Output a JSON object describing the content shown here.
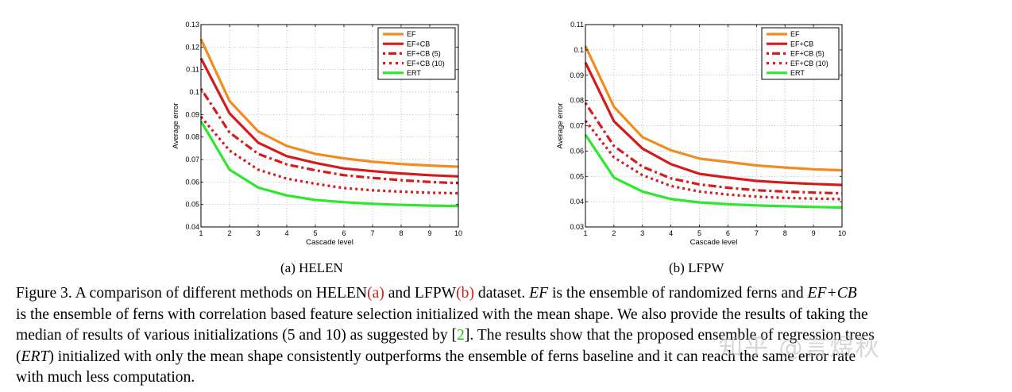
{
  "figure": {
    "subcaptions": [
      "(a)  HELEN",
      "(b)  LFPW"
    ],
    "caption_lines": [
      [
        {
          "t": "Figure 3. A comparison of different methods on HELEN"
        },
        {
          "t": "(a)",
          "c": "red"
        },
        {
          "t": " and LFPW"
        },
        {
          "t": "(b)",
          "c": "red"
        },
        {
          "t": " dataset. "
        },
        {
          "t": "EF",
          "i": true
        },
        {
          "t": " is the ensemble of randomized ferns and "
        },
        {
          "t": "EF+CB",
          "i": true
        }
      ],
      [
        {
          "t": "is the ensemble of ferns with correlation based feature selection initialized with the mean shape. We also provide the results of taking the"
        }
      ],
      [
        {
          "t": "median of results of various initializations (5 and 10) as suggested by ["
        },
        {
          "t": "2",
          "c": "green"
        },
        {
          "t": "]. The results show that the proposed ensemble of regression trees"
        }
      ],
      [
        {
          "t": "("
        },
        {
          "t": "ERT",
          "i": true
        },
        {
          "t": ") initialized with only the mean shape consistently outperforms the ensemble of ferns baseline and it can reach the same error rate"
        }
      ],
      [
        {
          "t": "with much less computation."
        }
      ]
    ],
    "watermark": "知乎 @言煜秋"
  },
  "chart_data": [
    {
      "type": "line",
      "title": "(a) HELEN",
      "xlabel": "Cascade level",
      "ylabel": "Average error",
      "x": [
        1,
        2,
        3,
        4,
        5,
        6,
        7,
        8,
        9,
        10
      ],
      "xlim": [
        1,
        10
      ],
      "ylim": [
        0.04,
        0.13
      ],
      "yticks": [
        0.04,
        0.05,
        0.06,
        0.07,
        0.08,
        0.09,
        0.1,
        0.11,
        0.12,
        0.13
      ],
      "ytick_labels": [
        "0.04",
        "0.05",
        "0.06",
        "0.07",
        "0.08",
        "0.09",
        "0.1",
        "0.11",
        "0.12",
        "0.13"
      ],
      "xtick_labels": [
        "1",
        "2",
        "3",
        "4",
        "5",
        "6",
        "7",
        "8",
        "9",
        "10"
      ],
      "grid": true,
      "legend_position": "top-right",
      "series": [
        {
          "name": "EF",
          "color": "#f28c1e",
          "style": "solid",
          "values": [
            0.1235,
            0.096,
            0.0825,
            0.076,
            0.0725,
            0.0705,
            0.069,
            0.068,
            0.0673,
            0.0668
          ]
        },
        {
          "name": "EF+CB",
          "color": "#d41c1c",
          "style": "solid",
          "values": [
            0.115,
            0.0905,
            0.0775,
            0.0715,
            0.0685,
            0.066,
            0.0648,
            0.0638,
            0.063,
            0.0625
          ]
        },
        {
          "name": "EF+CB (5)",
          "color": "#d41c1c",
          "style": "dashdot",
          "values": [
            0.1015,
            0.082,
            0.0725,
            0.0678,
            0.0652,
            0.063,
            0.0618,
            0.0608,
            0.06,
            0.0595
          ]
        },
        {
          "name": "EF+CB (10)",
          "color": "#d41c1c",
          "style": "dotted",
          "values": [
            0.089,
            0.074,
            0.0655,
            0.0615,
            0.0592,
            0.0573,
            0.0563,
            0.0557,
            0.0552,
            0.055
          ]
        },
        {
          "name": "ERT",
          "color": "#2ee82e",
          "style": "solid",
          "values": [
            0.087,
            0.0655,
            0.0575,
            0.054,
            0.052,
            0.051,
            0.0503,
            0.0498,
            0.0495,
            0.0493
          ]
        }
      ]
    },
    {
      "type": "line",
      "title": "(b) LFPW",
      "xlabel": "Cascade level",
      "ylabel": "Average error",
      "x": [
        1,
        2,
        3,
        4,
        5,
        6,
        7,
        8,
        9,
        10
      ],
      "xlim": [
        1,
        10
      ],
      "ylim": [
        0.03,
        0.11
      ],
      "yticks": [
        0.03,
        0.04,
        0.05,
        0.06,
        0.07,
        0.08,
        0.09,
        0.1,
        0.11
      ],
      "ytick_labels": [
        "0.03",
        "0.04",
        "0.05",
        "0.06",
        "0.07",
        "0.08",
        "0.09",
        "0.1",
        "0.11"
      ],
      "xtick_labels": [
        "1",
        "2",
        "3",
        "4",
        "5",
        "6",
        "7",
        "8",
        "9",
        "10"
      ],
      "grid": true,
      "legend_position": "top-right",
      "series": [
        {
          "name": "EF",
          "color": "#f28c1e",
          "style": "solid",
          "values": [
            0.1015,
            0.0775,
            0.0655,
            0.0603,
            0.057,
            0.0557,
            0.0543,
            0.0535,
            0.0528,
            0.0524
          ]
        },
        {
          "name": "EF+CB",
          "color": "#d41c1c",
          "style": "solid",
          "values": [
            0.095,
            0.0718,
            0.061,
            0.0548,
            0.051,
            0.0495,
            0.0482,
            0.0475,
            0.047,
            0.0466
          ]
        },
        {
          "name": "EF+CB (5)",
          "color": "#d41c1c",
          "style": "dashdot",
          "values": [
            0.079,
            0.062,
            0.0538,
            0.0492,
            0.0468,
            0.0455,
            0.0445,
            0.044,
            0.0436,
            0.0433
          ]
        },
        {
          "name": "EF+CB (10)",
          "color": "#d41c1c",
          "style": "dotted",
          "values": [
            0.072,
            0.0575,
            0.0505,
            0.0462,
            0.044,
            0.0428,
            0.042,
            0.0415,
            0.0412,
            0.041
          ]
        },
        {
          "name": "ERT",
          "color": "#2ee82e",
          "style": "solid",
          "values": [
            0.0665,
            0.0495,
            0.044,
            0.041,
            0.0397,
            0.039,
            0.0385,
            0.0382,
            0.0379,
            0.0377
          ]
        }
      ]
    }
  ]
}
